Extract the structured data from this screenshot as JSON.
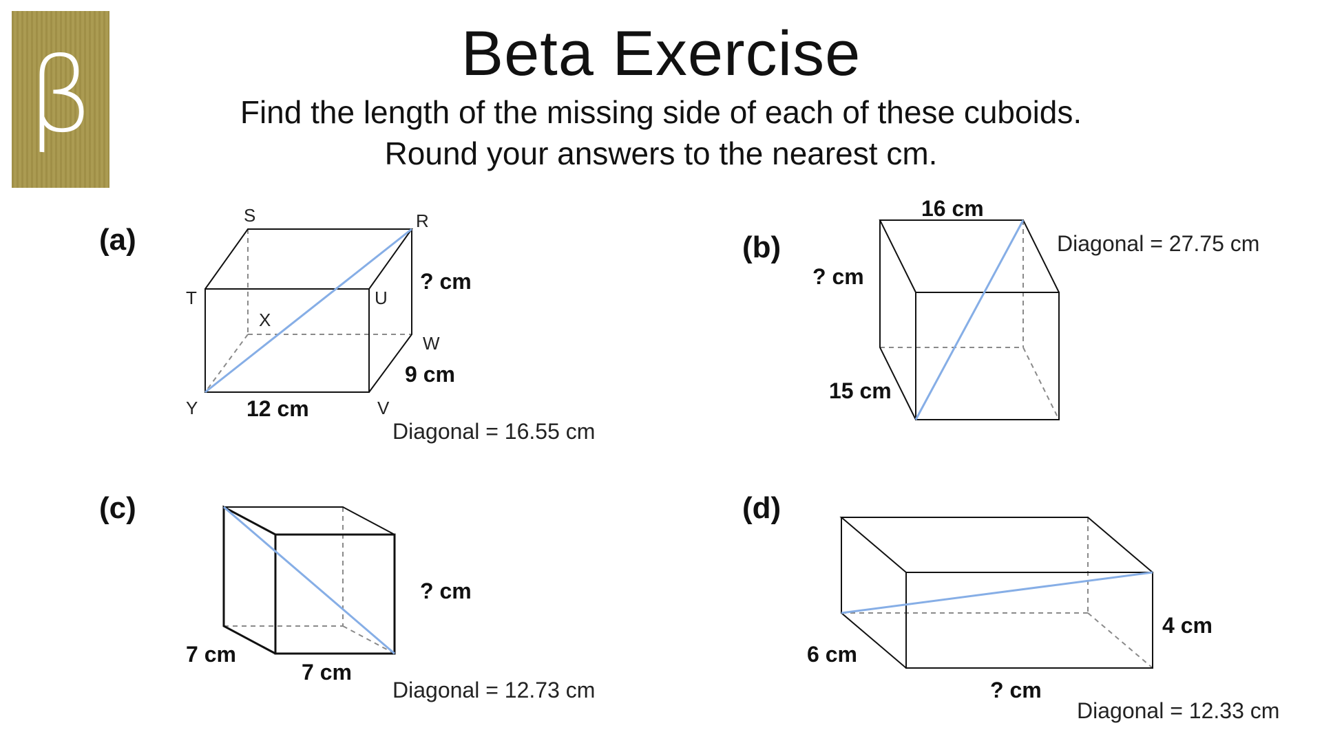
{
  "badge": {
    "letter": "β",
    "color": "#a8974b"
  },
  "title": "Beta Exercise",
  "instructions": [
    "Find the length of the missing side of each of these cuboids.",
    "Round your answers to the nearest cm."
  ],
  "diagonal_color": "#86aee6",
  "problems": [
    {
      "label": "(a)",
      "vertices": [
        "S",
        "R",
        "T",
        "U",
        "X",
        "W",
        "Y",
        "V"
      ],
      "sides": [
        "12 cm",
        "9 cm",
        "? cm"
      ],
      "diagonal": "Diagonal = 16.55 cm"
    },
    {
      "label": "(b)",
      "sides": [
        "16 cm",
        "15 cm",
        "? cm"
      ],
      "diagonal": "Diagonal = 27.75 cm"
    },
    {
      "label": "(c)",
      "sides": [
        "7 cm",
        "7 cm",
        "? cm"
      ],
      "diagonal": "Diagonal = 12.73 cm"
    },
    {
      "label": "(d)",
      "sides": [
        "6 cm",
        "4 cm",
        "? cm"
      ],
      "diagonal": "Diagonal = 12.33 cm"
    }
  ]
}
